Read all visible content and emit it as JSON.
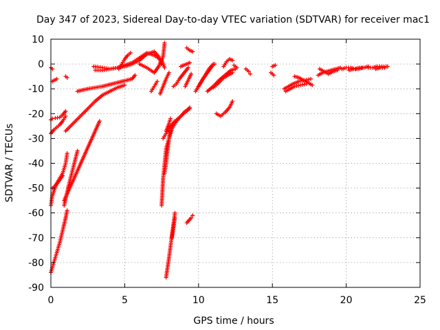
{
  "chart_data": {
    "type": "scatter",
    "title": "Day 347 of 2023, Sidereal Day-to-day VTEC variation (SDTVAR) for receiver mac1",
    "xlabel": "GPS time / hours",
    "ylabel": "SDTVAR / TECUs",
    "xlim": [
      0,
      25
    ],
    "ylim": [
      -90,
      10
    ],
    "xticks": [
      0,
      5,
      10,
      15,
      20,
      25
    ],
    "yticks": [
      10,
      0,
      -10,
      -20,
      -30,
      -40,
      -50,
      -60,
      -70,
      -80,
      -90
    ],
    "grid": true,
    "marker": "+",
    "color": "#ff0000",
    "segments": [
      {
        "x": [
          0.0,
          0.1
        ],
        "y": [
          -1.5,
          -2.0
        ]
      },
      {
        "x": [
          0.1,
          0.4
        ],
        "y": [
          -7.0,
          -6.0
        ]
      },
      {
        "x": [
          1.0,
          1.1
        ],
        "y": [
          -5.0,
          -5.5
        ]
      },
      {
        "x": [
          0.0,
          0.1,
          0.3,
          0.6,
          0.8,
          1.0
        ],
        "y": [
          -22.5,
          -22.0,
          -21.8,
          -21.5,
          -20.5,
          -19.0
        ]
      },
      {
        "x": [
          0.0,
          0.2,
          0.4,
          0.6,
          0.8,
          1.0
        ],
        "y": [
          -28.0,
          -26.5,
          -25.5,
          -24.5,
          -23.0,
          -21.0
        ]
      },
      {
        "x": [
          0.0,
          0.1,
          0.3,
          0.5,
          0.8,
          1.0,
          1.1
        ],
        "y": [
          -57.0,
          -53.0,
          -49.5,
          -47.0,
          -44.0,
          -40.0,
          -36.0
        ]
      },
      {
        "x": [
          0.1,
          0.3,
          0.5,
          0.8
        ],
        "y": [
          -50.0,
          -49.0,
          -47.5,
          -45.0
        ]
      },
      {
        "x": [
          0.0,
          0.2,
          0.4,
          0.6,
          0.8,
          1.0,
          1.1
        ],
        "y": [
          -84.0,
          -80.0,
          -76.0,
          -72.0,
          -67.0,
          -62.0,
          -59.0
        ]
      },
      {
        "x": [
          0.9,
          1.2,
          1.5,
          1.8,
          2.1,
          2.4,
          2.7,
          3.0,
          3.3
        ],
        "y": [
          -55.0,
          -51.0,
          -47.0,
          -43.0,
          -39.0,
          -35.0,
          -31.0,
          -27.0,
          -23.0
        ]
      },
      {
        "x": [
          0.9,
          1.2,
          1.5,
          1.8
        ],
        "y": [
          -57.0,
          -49.0,
          -42.0,
          -35.0
        ]
      },
      {
        "x": [
          1.0,
          1.5,
          2.0,
          2.5,
          3.0,
          3.5,
          4.0,
          4.5,
          5.0
        ],
        "y": [
          -27.0,
          -24.0,
          -21.0,
          -18.0,
          -15.0,
          -12.5,
          -11.0,
          -9.5,
          -8.5
        ]
      },
      {
        "x": [
          1.8,
          2.5,
          3.5,
          4.5,
          5.5,
          5.7
        ],
        "y": [
          -11.0,
          -10.0,
          -9.0,
          -7.5,
          -6.0,
          -4.5
        ]
      },
      {
        "x": [
          2.9,
          3.5,
          4.0,
          4.5,
          5.0,
          5.5,
          6.0,
          6.5,
          7.0,
          7.3,
          7.5
        ],
        "y": [
          -1.0,
          -1.5,
          -2.0,
          -1.5,
          -1.0,
          0.0,
          1.5,
          4.0,
          5.0,
          3.0,
          0.0
        ]
      },
      {
        "x": [
          3.0,
          3.5,
          4.0,
          4.5,
          5.0,
          5.5,
          6.0,
          6.5,
          7.0,
          7.5,
          7.7
        ],
        "y": [
          -2.5,
          -2.5,
          -2.0,
          -1.5,
          -0.5,
          0.5,
          2.5,
          4.5,
          3.5,
          1.5,
          -1.5
        ]
      },
      {
        "x": [
          4.6,
          4.8,
          5.0,
          5.2,
          5.4
        ],
        "y": [
          -2.0,
          0.0,
          2.0,
          3.5,
          4.5
        ]
      },
      {
        "x": [
          6.0,
          6.5,
          7.0,
          7.3,
          7.6,
          7.7
        ],
        "y": [
          0.0,
          -1.5,
          -3.5,
          -1.0,
          3.0,
          8.5
        ]
      },
      {
        "x": [
          6.8,
          7.0,
          7.2
        ],
        "y": [
          -11.0,
          -9.0,
          -7.0
        ]
      },
      {
        "x": [
          7.4,
          7.6,
          7.8,
          8.0
        ],
        "y": [
          -12.0,
          -9.0,
          -6.0,
          -3.5
        ]
      },
      {
        "x": [
          7.5,
          7.6,
          7.7,
          7.8,
          8.0,
          8.2,
          8.5,
          8.8,
          9.1,
          9.4
        ],
        "y": [
          -57.0,
          -46.0,
          -40.0,
          -34.0,
          -30.0,
          -26.0,
          -23.0,
          -21.0,
          -19.0,
          -18.0
        ]
      },
      {
        "x": [
          7.7,
          7.8,
          7.9,
          8.0,
          8.1
        ],
        "y": [
          -44.0,
          -40.0,
          -35.0,
          -30.0,
          -27.0
        ]
      },
      {
        "x": [
          7.6,
          7.8,
          8.0,
          8.2,
          8.4,
          8.6,
          8.8,
          9.0,
          9.2,
          9.4
        ],
        "y": [
          -30.0,
          -28.0,
          -26.0,
          -24.5,
          -23.0,
          -22.0,
          -21.0,
          -20.0,
          -19.0,
          -17.5
        ]
      },
      {
        "x": [
          7.8,
          8.0,
          8.1
        ],
        "y": [
          -27.0,
          -24.0,
          -22.0
        ]
      },
      {
        "x": [
          7.8,
          8.0,
          8.2,
          8.4
        ],
        "y": [
          -86.0,
          -78.0,
          -69.0,
          -60.0
        ]
      },
      {
        "x": [
          8.2,
          8.3,
          8.4
        ],
        "y": [
          -70.0,
          -66.0,
          -62.0
        ]
      },
      {
        "x": [
          9.2,
          9.5,
          9.6
        ],
        "y": [
          -64.0,
          -62.0,
          -61.0
        ]
      },
      {
        "x": [
          8.3,
          8.5,
          8.7,
          8.9,
          9.1,
          9.3
        ],
        "y": [
          -9.0,
          -8.0,
          -6.0,
          -4.5,
          -3.0,
          -1.5
        ]
      },
      {
        "x": [
          8.8,
          9.0,
          9.2,
          9.4
        ],
        "y": [
          -1.0,
          -0.5,
          0.0,
          0.5
        ]
      },
      {
        "x": [
          9.1,
          9.3,
          9.5
        ],
        "y": [
          -9.0,
          -6.5,
          -4.0
        ]
      },
      {
        "x": [
          9.2,
          9.4,
          9.6
        ],
        "y": [
          6.5,
          5.5,
          5.0
        ]
      },
      {
        "x": [
          9.8,
          10.1,
          10.4,
          10.7,
          11.0
        ],
        "y": [
          -11.0,
          -8.0,
          -5.0,
          -2.0,
          0.0
        ]
      },
      {
        "x": [
          10.0,
          10.3,
          10.6,
          10.9,
          11.1
        ],
        "y": [
          -9.0,
          -6.0,
          -3.5,
          -1.0,
          0.0
        ]
      },
      {
        "x": [
          10.6,
          11.0,
          11.4,
          11.8,
          12.2,
          12.5
        ],
        "y": [
          -11.0,
          -9.0,
          -6.5,
          -4.5,
          -2.5,
          -2.0
        ]
      },
      {
        "x": [
          11.0,
          11.3,
          11.6,
          12.0,
          12.3
        ],
        "y": [
          -9.5,
          -8.0,
          -6.0,
          -4.5,
          -3.5
        ]
      },
      {
        "x": [
          11.2,
          11.5,
          11.8,
          12.1,
          12.3
        ],
        "y": [
          -20.0,
          -21.0,
          -19.5,
          -17.5,
          -15.0
        ]
      },
      {
        "x": [
          11.7,
          11.9,
          12.1,
          12.3
        ],
        "y": [
          -1.0,
          1.0,
          2.0,
          1.5
        ]
      },
      {
        "x": [
          12.4,
          12.6
        ],
        "y": [
          -0.5,
          -1.5
        ]
      },
      {
        "x": [
          13.2,
          13.4,
          13.5
        ],
        "y": [
          -2.0,
          -3.0,
          -4.0
        ]
      },
      {
        "x": [
          14.9,
          15.0,
          15.1
        ],
        "y": [
          -3.5,
          -4.0,
          -4.5
        ]
      },
      {
        "x": [
          15.0,
          15.2
        ],
        "y": [
          -1.0,
          -0.5
        ]
      },
      {
        "x": [
          15.8,
          16.1,
          16.4,
          16.8,
          17.2,
          17.6
        ],
        "y": [
          -10.0,
          -9.0,
          -8.0,
          -7.0,
          -6.5,
          -6.0
        ]
      },
      {
        "x": [
          15.9,
          16.2,
          16.5,
          16.9,
          17.3
        ],
        "y": [
          -11.0,
          -10.0,
          -9.0,
          -8.5,
          -8.0
        ]
      },
      {
        "x": [
          16.5,
          16.8,
          17.1,
          17.4,
          17.7
        ],
        "y": [
          -5.0,
          -5.5,
          -6.5,
          -7.5,
          -8.5
        ]
      },
      {
        "x": [
          18.1,
          18.4,
          18.7,
          19.0,
          19.3,
          19.6
        ],
        "y": [
          -4.5,
          -3.5,
          -3.0,
          -2.5,
          -2.0,
          -1.5
        ]
      },
      {
        "x": [
          18.2,
          18.5,
          18.8,
          19.1,
          19.4
        ],
        "y": [
          -2.0,
          -3.0,
          -4.0,
          -3.0,
          -2.5
        ]
      },
      {
        "x": [
          19.7,
          20.0,
          20.3,
          20.6,
          20.9,
          21.2,
          21.5
        ],
        "y": [
          -2.0,
          -1.5,
          -1.5,
          -2.0,
          -1.5,
          -1.5,
          -1.0
        ]
      },
      {
        "x": [
          20.2,
          20.5,
          20.8,
          21.1
        ],
        "y": [
          -2.5,
          -2.0,
          -2.0,
          -1.5
        ]
      },
      {
        "x": [
          21.5,
          21.8,
          22.1,
          22.4,
          22.7,
          22.8
        ],
        "y": [
          -1.5,
          -1.5,
          -1.0,
          -1.0,
          -1.0,
          -1.0
        ]
      },
      {
        "x": [
          22.0,
          22.3,
          22.6
        ],
        "y": [
          -2.0,
          -1.5,
          -1.5
        ]
      }
    ]
  }
}
